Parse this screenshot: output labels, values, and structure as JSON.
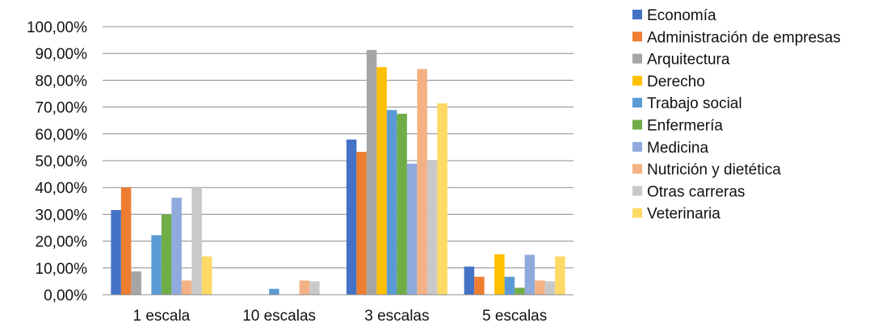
{
  "chart_data": {
    "type": "bar",
    "categories": [
      "1 escala",
      "10 escalas",
      "3 escalas",
      "5 escalas"
    ],
    "y_tick_labels": [
      "0,00%",
      "10,00%",
      "20,00%",
      "30,00%",
      "40,00%",
      "50,00%",
      "60,00%",
      "70,00%",
      "80,00%",
      "90,00%",
      "100,00%"
    ],
    "ylim": [
      0,
      100
    ],
    "grid": true,
    "legend_position": "right",
    "series": [
      {
        "name": "Economía",
        "color": "#4472C4",
        "values": [
          31.6,
          0,
          57.9,
          10.5
        ]
      },
      {
        "name": "Administración de empresas",
        "color": "#ED7D31",
        "values": [
          40.0,
          0,
          53.3,
          6.7
        ]
      },
      {
        "name": "Arquitectura",
        "color": "#A5A5A5",
        "values": [
          8.7,
          0,
          91.3,
          0
        ]
      },
      {
        "name": "Derecho",
        "color": "#FFC000",
        "values": [
          0,
          0,
          84.9,
          15.1
        ]
      },
      {
        "name": "Trabajo social",
        "color": "#5B9BD5",
        "values": [
          22.2,
          2.2,
          68.9,
          6.7
        ]
      },
      {
        "name": "Enfermería",
        "color": "#70AD47",
        "values": [
          29.9,
          0,
          67.5,
          2.6
        ]
      },
      {
        "name": "Medicina",
        "color": "#8FAADC",
        "values": [
          36.2,
          0,
          48.9,
          14.9
        ]
      },
      {
        "name": "Nutrición y dietética",
        "color": "#F4B183",
        "values": [
          5.3,
          5.3,
          84.2,
          5.3
        ]
      },
      {
        "name": "Otras  carreras",
        "color": "#C9C9C9",
        "values": [
          40.0,
          5.0,
          50.0,
          5.0
        ]
      },
      {
        "name": "Veterinaria",
        "color": "#FFD966",
        "values": [
          14.3,
          0,
          71.4,
          14.3
        ]
      }
    ]
  }
}
